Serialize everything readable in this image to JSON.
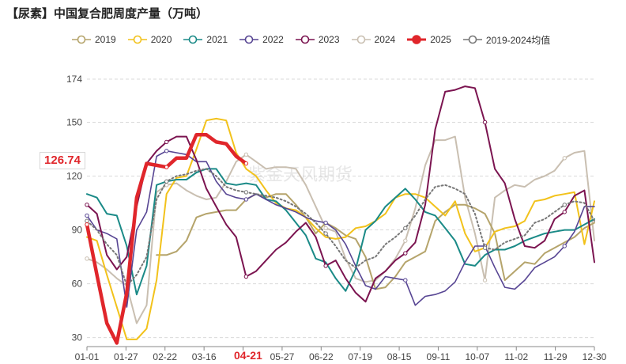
{
  "title": "【尿素】中国复合肥周度产量（万吨）",
  "watermark": "紫金天风期货",
  "highlight": {
    "value_label": "126.74",
    "x_label": "04-21"
  },
  "chart_data": {
    "type": "line",
    "title": "【尿素】中国复合肥周度产量（万吨）",
    "xlabel": "",
    "ylabel": "",
    "ylim": [
      25,
      174
    ],
    "yticks": [
      30,
      60,
      90,
      120,
      150,
      174
    ],
    "xticks": [
      "01-01",
      "01-27",
      "02-22",
      "03-16",
      "04-21",
      "05-27",
      "06-22",
      "07-19",
      "08-15",
      "09-11",
      "10-07",
      "11-02",
      "11-29",
      "12-30"
    ],
    "x_range": [
      1,
      52
    ],
    "grid": "horizontal dashed",
    "legend_position": "top",
    "series": [
      {
        "name": "2019",
        "color": "#b5a46b",
        "marker": "none",
        "width": 2,
        "x": [
          8,
          9,
          10,
          11,
          12,
          13,
          14,
          15,
          16,
          17,
          18,
          19,
          20,
          21,
          22,
          23,
          24,
          25,
          26,
          27,
          28,
          29,
          30,
          31,
          32,
          33,
          34,
          35,
          36,
          37,
          38,
          39,
          40,
          41,
          42,
          43,
          44,
          45,
          46,
          47,
          48,
          49,
          50,
          51,
          52
        ],
        "y": [
          76,
          76,
          78,
          84,
          97,
          99,
          100,
          101,
          101,
          107,
          110,
          108,
          110,
          110,
          104,
          97,
          88,
          94,
          91,
          87,
          85,
          75,
          57,
          58,
          64,
          72,
          75,
          78,
          95,
          100,
          104,
          104,
          102,
          99,
          88,
          62,
          67,
          72,
          71,
          77,
          80,
          83,
          86,
          91,
          94
        ]
      },
      {
        "name": "2020",
        "color": "#f2c21b",
        "marker": "none",
        "width": 2,
        "x": [
          1,
          2,
          3,
          4,
          5,
          6,
          7,
          8,
          9,
          10,
          11,
          12,
          13,
          14,
          15,
          16,
          17,
          18,
          19,
          20,
          21,
          22,
          23,
          24,
          25,
          26,
          27,
          28,
          29,
          30,
          31,
          32,
          33,
          34,
          35,
          36,
          37,
          38,
          39,
          40,
          41,
          42,
          43,
          44,
          45,
          46,
          47,
          48,
          49,
          50,
          51,
          52
        ],
        "y": [
          86,
          84,
          65,
          47,
          29,
          29,
          35,
          62,
          110,
          119,
          120,
          135,
          151,
          152,
          151,
          133,
          124,
          120,
          112,
          105,
          102,
          101,
          97,
          91,
          86,
          85,
          86,
          91,
          92,
          95,
          99,
          108,
          110,
          110,
          108,
          103,
          98,
          106,
          88,
          78,
          80,
          89,
          91,
          92,
          95,
          106,
          107,
          109,
          110,
          111,
          82,
          106
        ]
      },
      {
        "name": "2021",
        "color": "#1a8a87",
        "marker": "none",
        "width": 2,
        "x": [
          1,
          2,
          3,
          4,
          5,
          6,
          7,
          8,
          9,
          10,
          11,
          12,
          13,
          14,
          15,
          16,
          17,
          18,
          19,
          20,
          21,
          22,
          23,
          24,
          25,
          26,
          27,
          28,
          29,
          30,
          31,
          32,
          33,
          34,
          35,
          36,
          37,
          38,
          39,
          40,
          41,
          42,
          43,
          44,
          45,
          46,
          47,
          48,
          49,
          50,
          51,
          52
        ],
        "y": [
          110,
          108,
          99,
          98,
          81,
          54,
          70,
          115,
          117,
          118,
          118,
          122,
          124,
          124,
          116,
          115,
          116,
          115,
          107,
          106,
          101,
          94,
          87,
          74,
          72,
          63,
          56,
          68,
          90,
          95,
          103,
          108,
          113,
          107,
          100,
          98,
          91,
          84,
          71,
          70,
          76,
          79,
          79,
          81,
          84,
          86,
          88,
          89,
          90,
          90,
          93,
          96
        ]
      },
      {
        "name": "2022",
        "color": "#574593",
        "marker": "circle",
        "width": 1.6,
        "x": [
          1,
          2,
          3,
          4,
          5,
          6,
          7,
          8,
          9,
          10,
          11,
          12,
          13,
          14,
          15,
          16,
          17,
          18,
          19,
          20,
          21,
          22,
          23,
          24,
          25,
          26,
          27,
          28,
          29,
          30,
          31,
          32,
          33,
          34,
          35,
          36,
          37,
          38,
          39,
          40,
          41,
          42,
          43,
          44,
          45,
          46,
          47,
          48,
          49,
          50,
          51,
          52
        ],
        "y": [
          98,
          90,
          88,
          85,
          47,
          90,
          100,
          131,
          134,
          133,
          132,
          128,
          128,
          117,
          110,
          108,
          107,
          110,
          107,
          104,
          102,
          100,
          97,
          95,
          94,
          90,
          82,
          70,
          59,
          57,
          64,
          63,
          62,
          48,
          53,
          54,
          56,
          61,
          72,
          81,
          81,
          69,
          58,
          57,
          62,
          69,
          72,
          75,
          81,
          89,
          103,
          103
        ]
      },
      {
        "name": "2023",
        "color": "#7b1450",
        "marker": "circle",
        "width": 2,
        "x": [
          1,
          2,
          3,
          4,
          5,
          6,
          7,
          8,
          9,
          10,
          11,
          12,
          13,
          14,
          15,
          16,
          17,
          18,
          19,
          20,
          21,
          22,
          23,
          24,
          25,
          26,
          27,
          28,
          29,
          30,
          31,
          32,
          33,
          34,
          35,
          36,
          37,
          38,
          39,
          40,
          41,
          42,
          43,
          44,
          45,
          46,
          47,
          48,
          49,
          50,
          51,
          52
        ],
        "y": [
          104,
          99,
          76,
          68,
          75,
          103,
          127,
          134,
          139,
          142,
          142,
          129,
          113,
          103,
          93,
          86,
          64,
          67,
          73,
          79,
          83,
          89,
          94,
          86,
          70,
          73,
          63,
          55,
          50,
          63,
          67,
          73,
          77,
          83,
          104,
          146,
          167,
          168,
          170,
          169,
          150,
          124,
          116,
          96,
          81,
          80,
          84,
          96,
          100,
          109,
          112,
          72
        ]
      },
      {
        "name": "2024",
        "color": "#c9bfb1",
        "marker": "circle",
        "width": 2,
        "x": [
          1,
          2,
          3,
          4,
          5,
          6,
          7,
          8,
          9,
          10,
          11,
          12,
          13,
          14,
          15,
          16,
          17,
          18,
          19,
          20,
          21,
          22,
          23,
          24,
          25,
          26,
          27,
          28,
          29,
          30,
          31,
          32,
          33,
          34,
          35,
          36,
          37,
          38,
          39,
          40,
          41,
          42,
          43,
          44,
          45,
          46,
          47,
          48,
          49,
          50,
          51,
          52
        ],
        "y": [
          74,
          72,
          68,
          63,
          59,
          38,
          48,
          111,
          115,
          116,
          112,
          109,
          107,
          108,
          117,
          128,
          132,
          128,
          124,
          125,
          125,
          124,
          115,
          103,
          91,
          89,
          74,
          63,
          61,
          62,
          67,
          74,
          84,
          102,
          126,
          140,
          140,
          142,
          108,
          88,
          62,
          108,
          112,
          115,
          114,
          118,
          120,
          123,
          130,
          133,
          134,
          84
        ]
      },
      {
        "name": "2025",
        "color": "#e0262b",
        "marker": "circle",
        "width": 4.5,
        "x": [
          1,
          2,
          3,
          4,
          5,
          6,
          7,
          8,
          9,
          10,
          11,
          12,
          13,
          14,
          15,
          16,
          17
        ],
        "y": [
          93,
          65,
          38,
          27,
          55,
          108,
          127,
          126,
          125,
          130,
          130,
          143,
          143,
          139,
          138,
          131,
          127
        ]
      },
      {
        "name": "2019-2024均值",
        "color": "#777777",
        "marker": "circle",
        "dashed": true,
        "width": 2,
        "x": [
          1,
          2,
          3,
          4,
          5,
          6,
          7,
          8,
          9,
          10,
          11,
          12,
          13,
          14,
          15,
          16,
          17,
          18,
          19,
          20,
          21,
          22,
          23,
          24,
          25,
          26,
          27,
          28,
          29,
          30,
          31,
          32,
          33,
          34,
          35,
          36,
          37,
          38,
          39,
          40,
          41,
          42,
          43,
          44,
          45,
          46,
          47,
          48,
          49,
          50,
          51,
          52
        ],
        "y": [
          95,
          90,
          82,
          76,
          59,
          65,
          75,
          107,
          117,
          120,
          121,
          123,
          124,
          120,
          114,
          112,
          111,
          110,
          109,
          108,
          106,
          103,
          99,
          94,
          88,
          81,
          73,
          69,
          73,
          75,
          82,
          86,
          91,
          98,
          107,
          114,
          115,
          113,
          110,
          99,
          80,
          79,
          83,
          85,
          87,
          94,
          96,
          100,
          104,
          106,
          105,
          95
        ]
      }
    ]
  }
}
